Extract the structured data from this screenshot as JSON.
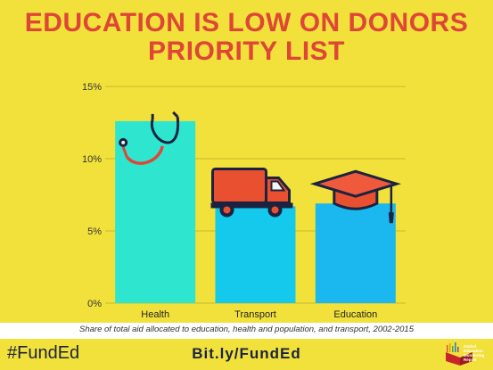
{
  "header": {
    "title_line1": "EDUCATION IS LOW ON DONORS",
    "title_line2": "PRIORITY LIST"
  },
  "chart_data": {
    "type": "bar",
    "categories": [
      "Health",
      "Transport",
      "Education"
    ],
    "values": [
      12.6,
      6.7,
      6.9
    ],
    "ylim": [
      0,
      15
    ],
    "yticks": [
      "0%",
      "5%",
      "10%",
      "15%"
    ],
    "grid": true,
    "icons": [
      "stethoscope-icon",
      "truck-icon",
      "graduation-cap-icon"
    ],
    "colors": [
      "#2ee6cf",
      "#15c9ec",
      "#1bb8ef"
    ]
  },
  "caption": "Share of total aid allocated to education, health and population, and transport, 2002-2015",
  "footer": {
    "hashtag": "#FundEd",
    "link": "Bit.ly/FundEd",
    "logo_text": [
      "Global",
      "Education",
      "Monitoring",
      "Report"
    ]
  }
}
